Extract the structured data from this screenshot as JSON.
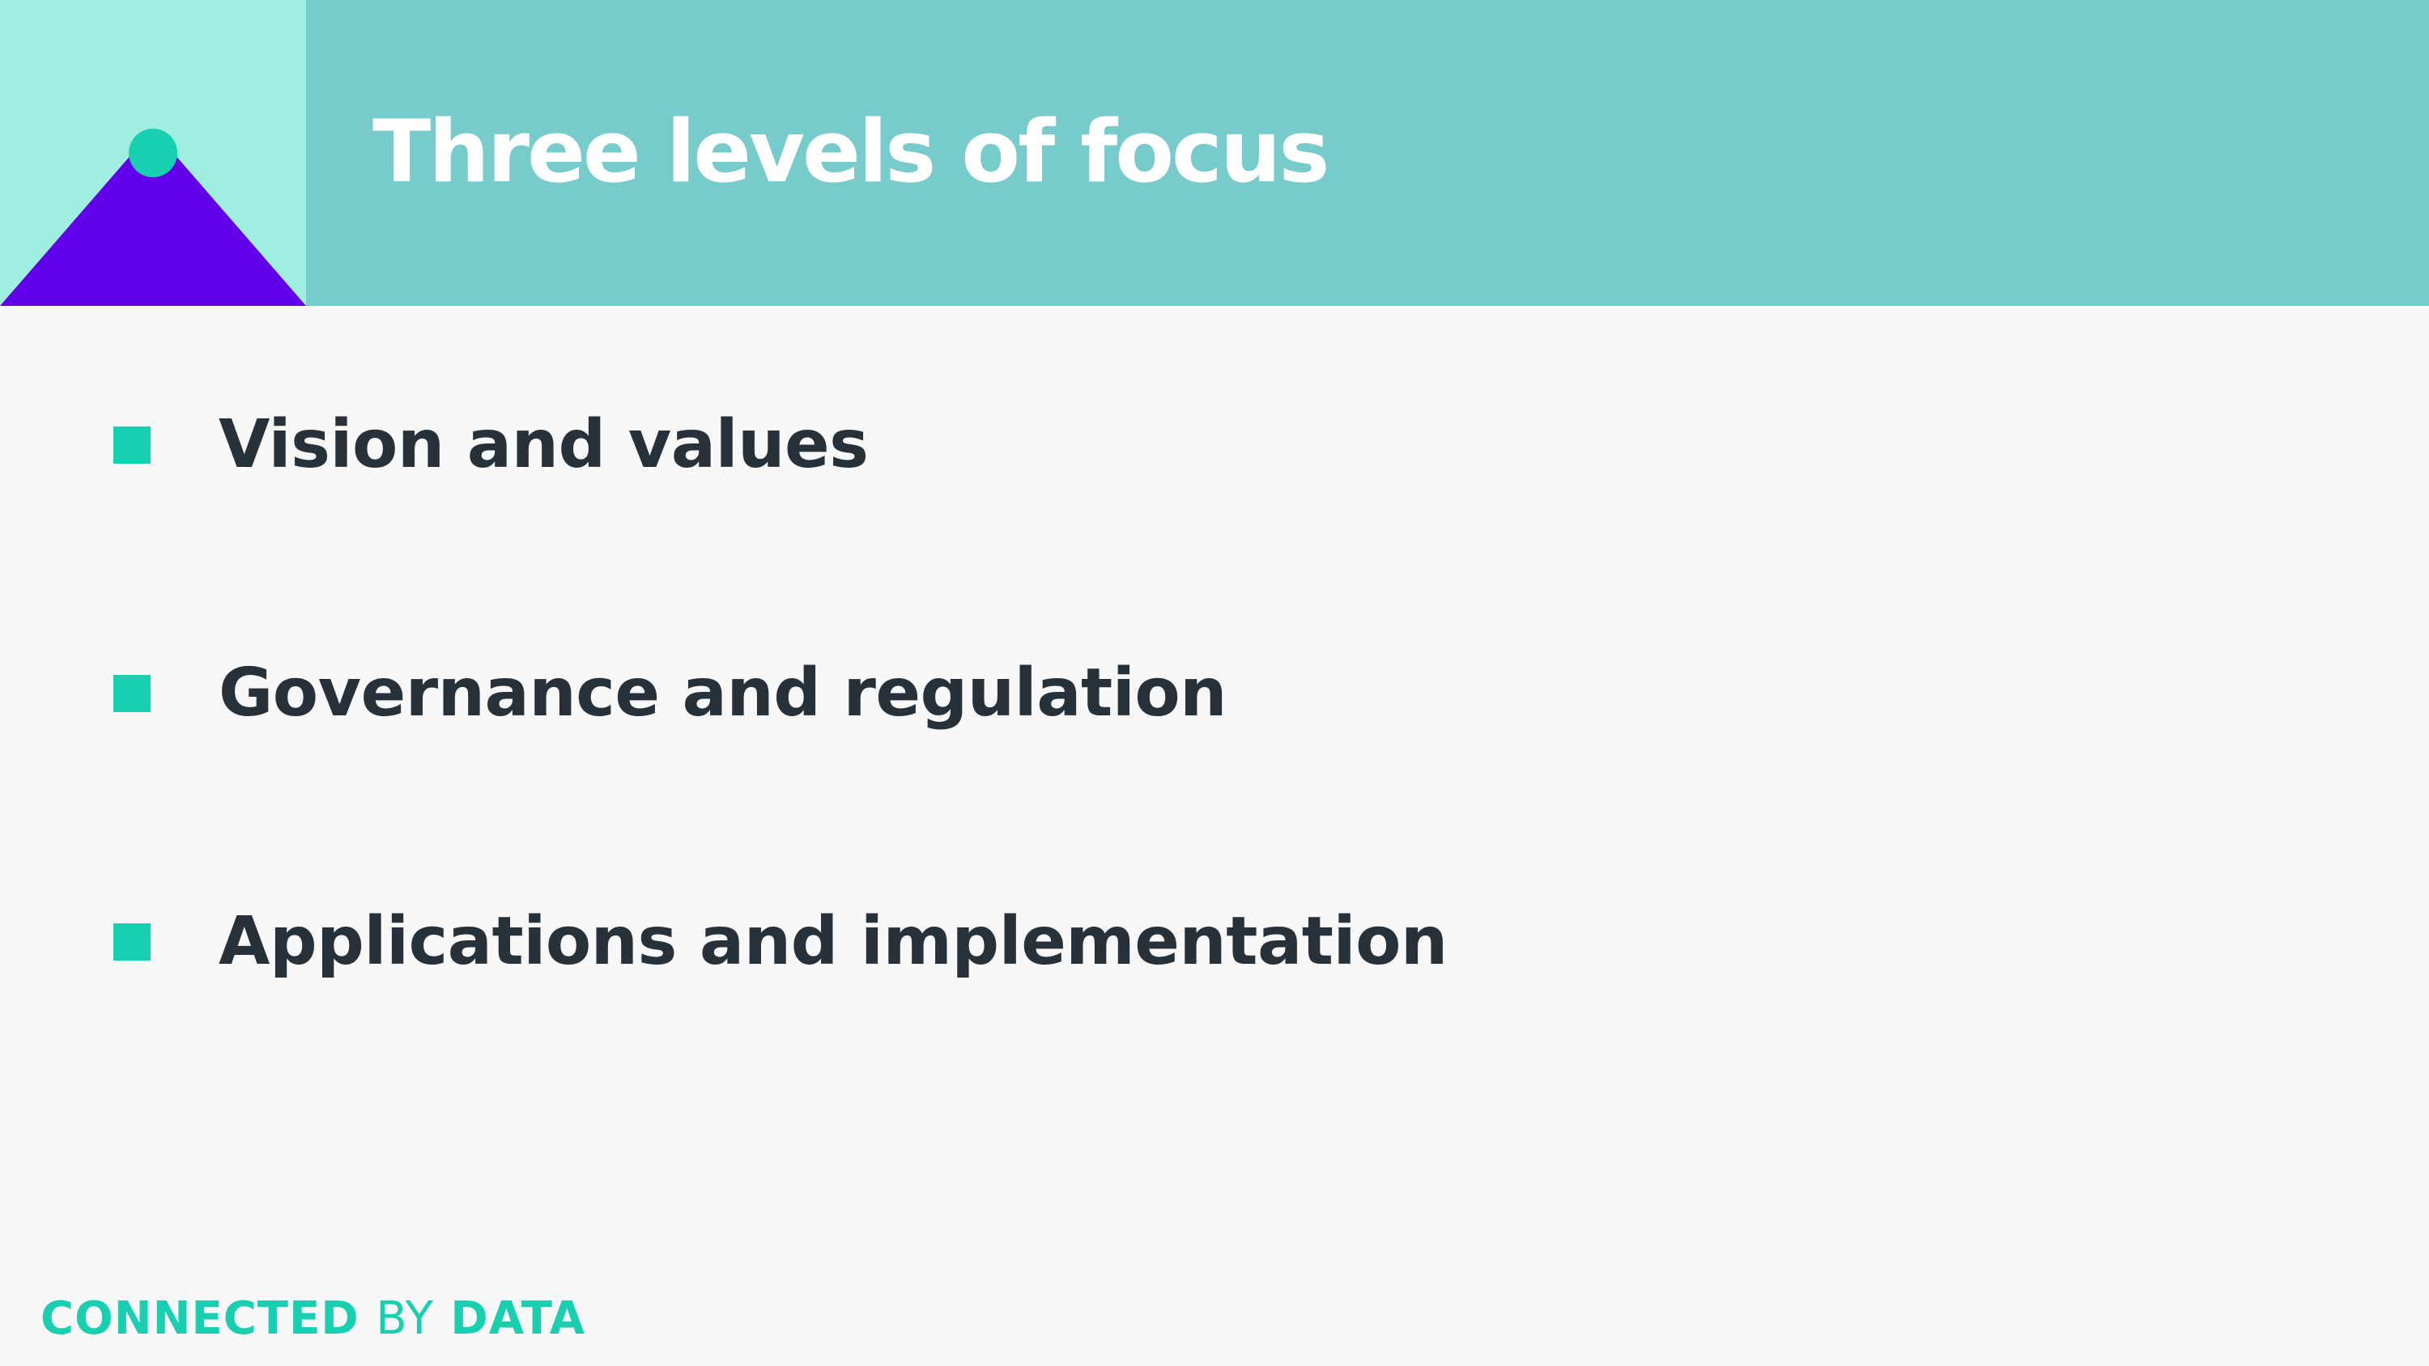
{
  "slide": {
    "title": "Three levels of focus",
    "bullets": [
      {
        "label": "Vision and values"
      },
      {
        "label": "Governance and regulation"
      },
      {
        "label": "Applications and implementation"
      }
    ]
  },
  "footer": {
    "brand_part1": "CONNECTED",
    "brand_part2": "BY",
    "brand_part3": "DATA"
  },
  "colors": {
    "header_band": "#77cbcb",
    "logo_background": "#a0eee0",
    "logo_triangle": "#6200ea",
    "accent": "#18cfb0",
    "text_dark": "#27313a",
    "background": "#f8f8f8"
  },
  "icons": {
    "logo": "mountain-peak-logo-icon",
    "bullet": "square-bullet-icon"
  }
}
